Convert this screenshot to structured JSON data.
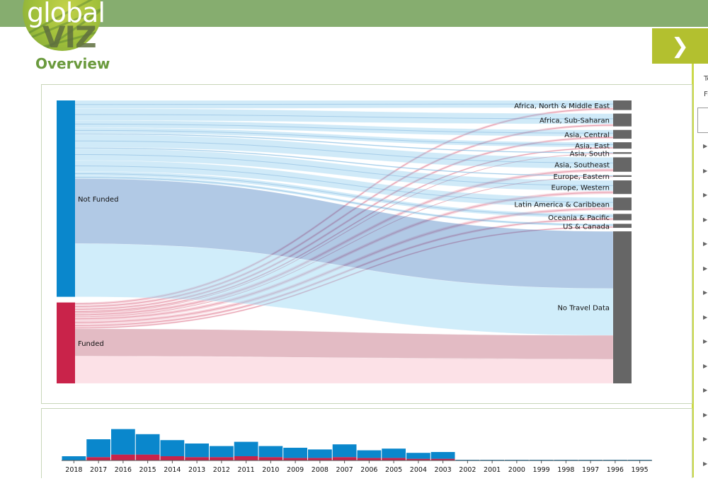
{
  "header": {
    "logo_global": "global",
    "logo_viz": "VIZ",
    "page_title": "Overview"
  },
  "sidebar": {
    "fragments": [
      "To",
      "Fi"
    ],
    "arrow_count": 14
  },
  "colors": {
    "header_green": "#86ad6f",
    "accent_lime": "#b3c02f",
    "not_funded": "#0a87cc",
    "funded": "#c9234a",
    "region_node": "#666666"
  },
  "chart_data": [
    {
      "type": "sankey",
      "title": "",
      "sources": [
        {
          "name": "Not Funded",
          "color": "#0a87cc"
        },
        {
          "name": "Funded",
          "color": "#c9234a"
        }
      ],
      "targets": [
        "Africa, North & Middle East",
        "Africa, Sub-Saharan",
        "Asia, Central",
        "Asia, East",
        "Asia, South",
        "Asia, Southeast",
        "Europe, Eastern",
        "Europe, Western",
        "Latin America & Caribbean",
        "Oceania & Pacific",
        "US & Canada",
        "No Travel Data"
      ],
      "flows": [
        {
          "source": "Not Funded",
          "target": "Africa, North & Middle East",
          "value": 9
        },
        {
          "source": "Not Funded",
          "target": "Africa, Sub-Saharan",
          "value": 13
        },
        {
          "source": "Not Funded",
          "target": "Asia, Central",
          "value": 8
        },
        {
          "source": "Not Funded",
          "target": "Asia, East",
          "value": 6
        },
        {
          "source": "Not Funded",
          "target": "Asia, South",
          "value": 1.5
        },
        {
          "source": "Not Funded",
          "target": "Asia, Southeast",
          "value": 14
        },
        {
          "source": "Not Funded",
          "target": "Europe, Eastern",
          "value": 1.5
        },
        {
          "source": "Not Funded",
          "target": "Europe, Western",
          "value": 13
        },
        {
          "source": "Not Funded",
          "target": "Latin America & Caribbean",
          "value": 12
        },
        {
          "source": "Not Funded",
          "target": "Oceania & Pacific",
          "value": 5
        },
        {
          "source": "Not Funded",
          "target": "US & Canada",
          "value": 3
        },
        {
          "source": "Not Funded",
          "target": "No Travel Data",
          "value": 130
        },
        {
          "source": "Funded",
          "target": "Africa, North & Middle East",
          "value": 3
        },
        {
          "source": "Funded",
          "target": "Africa, Sub-Saharan",
          "value": 3
        },
        {
          "source": "Funded",
          "target": "Asia, Central",
          "value": 3
        },
        {
          "source": "Funded",
          "target": "Asia, East",
          "value": 2
        },
        {
          "source": "Funded",
          "target": "Asia, South",
          "value": 0.5
        },
        {
          "source": "Funded",
          "target": "Asia, Southeast",
          "value": 4
        },
        {
          "source": "Funded",
          "target": "Europe, Eastern",
          "value": 0.5
        },
        {
          "source": "Funded",
          "target": "Europe, Western",
          "value": 4
        },
        {
          "source": "Funded",
          "target": "Latin America & Caribbean",
          "value": 4
        },
        {
          "source": "Funded",
          "target": "Oceania & Pacific",
          "value": 3
        },
        {
          "source": "Funded",
          "target": "US & Canada",
          "value": 2
        },
        {
          "source": "Funded",
          "target": "No Travel Data",
          "value": 60
        }
      ]
    },
    {
      "type": "bar",
      "title": "",
      "categories": [
        "2018",
        "2017",
        "2016",
        "2015",
        "2014",
        "2013",
        "2012",
        "2011",
        "2010",
        "2009",
        "2008",
        "2007",
        "2006",
        "2005",
        "2004",
        "2003",
        "2002",
        "2001",
        "2000",
        "1999",
        "1998",
        "1997",
        "1996",
        "1995"
      ],
      "series": [
        {
          "name": "Not Funded",
          "color": "#0a87cc",
          "values": [
            5,
            21,
            30,
            24,
            19,
            16,
            13,
            17,
            13,
            12,
            10,
            15,
            9,
            11,
            7,
            8,
            0.5,
            0.3,
            0.3,
            0.3,
            0.3,
            0.3,
            0.3,
            0.5
          ]
        },
        {
          "name": "Funded",
          "color": "#c9234a",
          "values": [
            0,
            4,
            7,
            7,
            5,
            4,
            4,
            5,
            4,
            3,
            3,
            4,
            3,
            3,
            2,
            2,
            0,
            0,
            0,
            0,
            0,
            0,
            0,
            0
          ]
        }
      ],
      "stacked": true,
      "xlabel": "",
      "ylabel": "",
      "ylim": [
        0,
        40
      ]
    }
  ]
}
